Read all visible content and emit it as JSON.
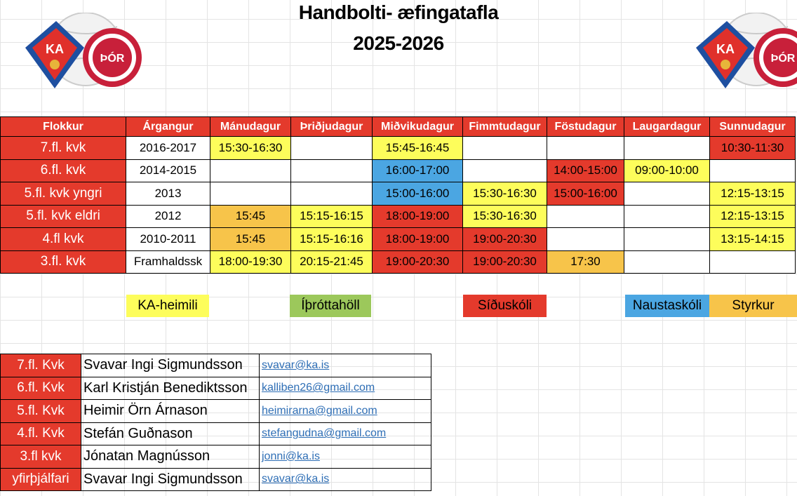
{
  "title": {
    "line1": "Handbolti- æfingatafla",
    "line2": "2025-2026"
  },
  "colors": {
    "red": "#e43a2c",
    "yellow": "#fdfd5b",
    "blue": "#4ba6e2",
    "orange": "#f7c44a",
    "green": "#9cc85b",
    "white": "#ffffff"
  },
  "logos": {
    "left": "KA Þór club logo",
    "right": "KA Þór club logo",
    "ka_text": "KA",
    "thor_text": "ÞÓR"
  },
  "schedule": {
    "headers": [
      "Flokkur",
      "Árgangur",
      "Mánudagur",
      "Þriðjudagur",
      "Miðvikudagur",
      "Fimmtudagur",
      "Föstudagur",
      "Laugardagur",
      "Sunnudagur"
    ],
    "rows": [
      {
        "flokkur": "7.fl. kvk",
        "argangur": "2016-2017",
        "days": [
          {
            "t": "15:30-16:30",
            "c": "yellow"
          },
          {
            "t": "",
            "c": "white"
          },
          {
            "t": "15:45-16:45",
            "c": "yellow"
          },
          {
            "t": "",
            "c": "white"
          },
          {
            "t": "",
            "c": "white"
          },
          {
            "t": "",
            "c": "white"
          },
          {
            "t": "10:30-11:30",
            "c": "red"
          }
        ]
      },
      {
        "flokkur": "6.fl. kvk",
        "argangur": "2014-2015",
        "days": [
          {
            "t": "",
            "c": "white"
          },
          {
            "t": "",
            "c": "white"
          },
          {
            "t": "16:00-17:00",
            "c": "blue"
          },
          {
            "t": "",
            "c": "white"
          },
          {
            "t": "14:00-15:00",
            "c": "red"
          },
          {
            "t": "09:00-10:00",
            "c": "yellow"
          },
          {
            "t": "",
            "c": "white"
          }
        ]
      },
      {
        "flokkur": "5.fl. kvk yngri",
        "argangur": "2013",
        "days": [
          {
            "t": "",
            "c": "white"
          },
          {
            "t": "",
            "c": "white"
          },
          {
            "t": "15:00-16:00",
            "c": "blue"
          },
          {
            "t": "15:30-16:30",
            "c": "yellow"
          },
          {
            "t": "15:00-16:00",
            "c": "red"
          },
          {
            "t": "",
            "c": "white"
          },
          {
            "t": "12:15-13:15",
            "c": "yellow"
          }
        ]
      },
      {
        "flokkur": "5.fl. kvk eldri",
        "argangur": "2012",
        "days": [
          {
            "t": "15:45",
            "c": "orange"
          },
          {
            "t": "15:15-16:15",
            "c": "yellow"
          },
          {
            "t": "18:00-19:00",
            "c": "red"
          },
          {
            "t": "15:30-16:30",
            "c": "yellow"
          },
          {
            "t": "",
            "c": "white"
          },
          {
            "t": "",
            "c": "white"
          },
          {
            "t": "12:15-13:15",
            "c": "yellow"
          }
        ]
      },
      {
        "flokkur": "4.fl  kvk",
        "argangur": "2010-2011",
        "days": [
          {
            "t": "15:45",
            "c": "orange"
          },
          {
            "t": "15:15-16:16",
            "c": "yellow"
          },
          {
            "t": "18:00-19:00",
            "c": "red"
          },
          {
            "t": "19:00-20:30",
            "c": "red"
          },
          {
            "t": "",
            "c": "white"
          },
          {
            "t": "",
            "c": "white"
          },
          {
            "t": "13:15-14:15",
            "c": "yellow"
          }
        ]
      },
      {
        "flokkur": "3.fl. kvk",
        "argangur": "Framhaldssk",
        "days": [
          {
            "t": "18:00-19:30",
            "c": "yellow"
          },
          {
            "t": "20:15-21:45",
            "c": "yellow"
          },
          {
            "t": "19:00-20:30",
            "c": "red"
          },
          {
            "t": "19:00-20:30",
            "c": "red"
          },
          {
            "t": "17:30",
            "c": "orange"
          },
          {
            "t": "",
            "c": "white"
          },
          {
            "t": "",
            "c": "white"
          }
        ]
      }
    ]
  },
  "legend": [
    {
      "label": "KA-heimili",
      "c": "yellow"
    },
    {
      "label": "Íþróttahöll",
      "c": "green"
    },
    {
      "label": "Síðuskóli",
      "c": "red"
    },
    {
      "label": "Naustaskóli",
      "c": "blue"
    },
    {
      "label": "Styrkur",
      "c": "orange"
    }
  ],
  "contacts": [
    {
      "group": "7.fl. Kvk",
      "name": "Svavar Ingi Sigmundsson",
      "email": "svavar@ka.is"
    },
    {
      "group": "6.fl. Kvk",
      "name": "Karl Kristján Benediktsson",
      "email": "kalliben26@gmail.com"
    },
    {
      "group": "5.fl. Kvk",
      "name": "Heimir Örn Árnason",
      "email": "heimirarna@gmail.com"
    },
    {
      "group": "4.fl. Kvk",
      "name": "Stefán Guðnason",
      "email": "stefangudna@gmail.com"
    },
    {
      "group": "3.fl kvk",
      "name": "Jónatan Magnússon",
      "email": "jonni@ka.is"
    },
    {
      "group": "yfirþjálfari",
      "name": "Svavar Ingi Sigmundsson",
      "email": "svavar@ka.is"
    }
  ]
}
